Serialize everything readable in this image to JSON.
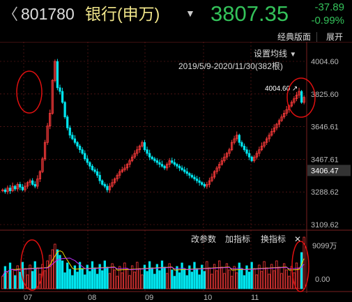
{
  "header": {
    "back_icon": "left-bracket-back",
    "code": "801780",
    "name": "银行(申万)",
    "dropdown_icon": "chevron-down-icon",
    "price": "3807.35",
    "change": "-37.89",
    "change_pct": "-0.99%"
  },
  "toolbar": {
    "classic": "经典版面",
    "expand": "展开",
    "ma_setting": "设置均线",
    "date_range": "2019/5/9-2020/11/30(382根)",
    "max_marker": "4004.60",
    "last_price_box": "3406.47"
  },
  "y_axis": [
    "4004.60",
    "3825.60",
    "3646.61",
    "3467.61",
    "3288.62",
    "3109.62"
  ],
  "x_axis": [
    "07",
    "08",
    "09",
    "10",
    "11"
  ],
  "indicator_bar": {
    "params": "改参数",
    "add": "加指标",
    "switch": "换指标",
    "close_icon": "close-icon"
  },
  "volume_axis": [
    "9099万",
    "0.00"
  ],
  "colors": {
    "up": "#ff3b3b",
    "down": "#00e5ee",
    "ma_yellow": "#f0e000",
    "ma_purple": "#c030ff",
    "grid": "#7a1f1f",
    "price_green": "#34c25a",
    "circle": "#e01010"
  },
  "chart_data": {
    "type": "candlestick",
    "y_range": [
      3109.62,
      4004.6
    ],
    "max_value": 4004.6,
    "closes": [
      3300,
      3290,
      3310,
      3295,
      3320,
      3305,
      3330,
      3315,
      3300,
      3320,
      3340,
      3350,
      3330,
      3320,
      3360,
      3400,
      3470,
      3560,
      3650,
      3720,
      3900,
      4004,
      3860,
      3840,
      3780,
      3700,
      3640,
      3600,
      3580,
      3560,
      3540,
      3520,
      3500,
      3470,
      3450,
      3430,
      3410,
      3400,
      3380,
      3350,
      3330,
      3320,
      3300,
      3320,
      3340,
      3360,
      3380,
      3400,
      3410,
      3420,
      3440,
      3460,
      3480,
      3500,
      3520,
      3540,
      3560,
      3520,
      3500,
      3480,
      3470,
      3460,
      3450,
      3440,
      3430,
      3420,
      3440,
      3460,
      3450,
      3440,
      3430,
      3420,
      3410,
      3400,
      3390,
      3380,
      3370,
      3360,
      3350,
      3340,
      3330,
      3320,
      3330,
      3350,
      3370,
      3400,
      3420,
      3440,
      3460,
      3480,
      3500,
      3520,
      3560,
      3580,
      3600,
      3560,
      3540,
      3520,
      3500,
      3480,
      3460,
      3480,
      3500,
      3520,
      3540,
      3560,
      3580,
      3600,
      3620,
      3640,
      3660,
      3680,
      3700,
      3720,
      3740,
      3760,
      3780,
      3800,
      3820,
      3840,
      3780,
      3807
    ]
  }
}
